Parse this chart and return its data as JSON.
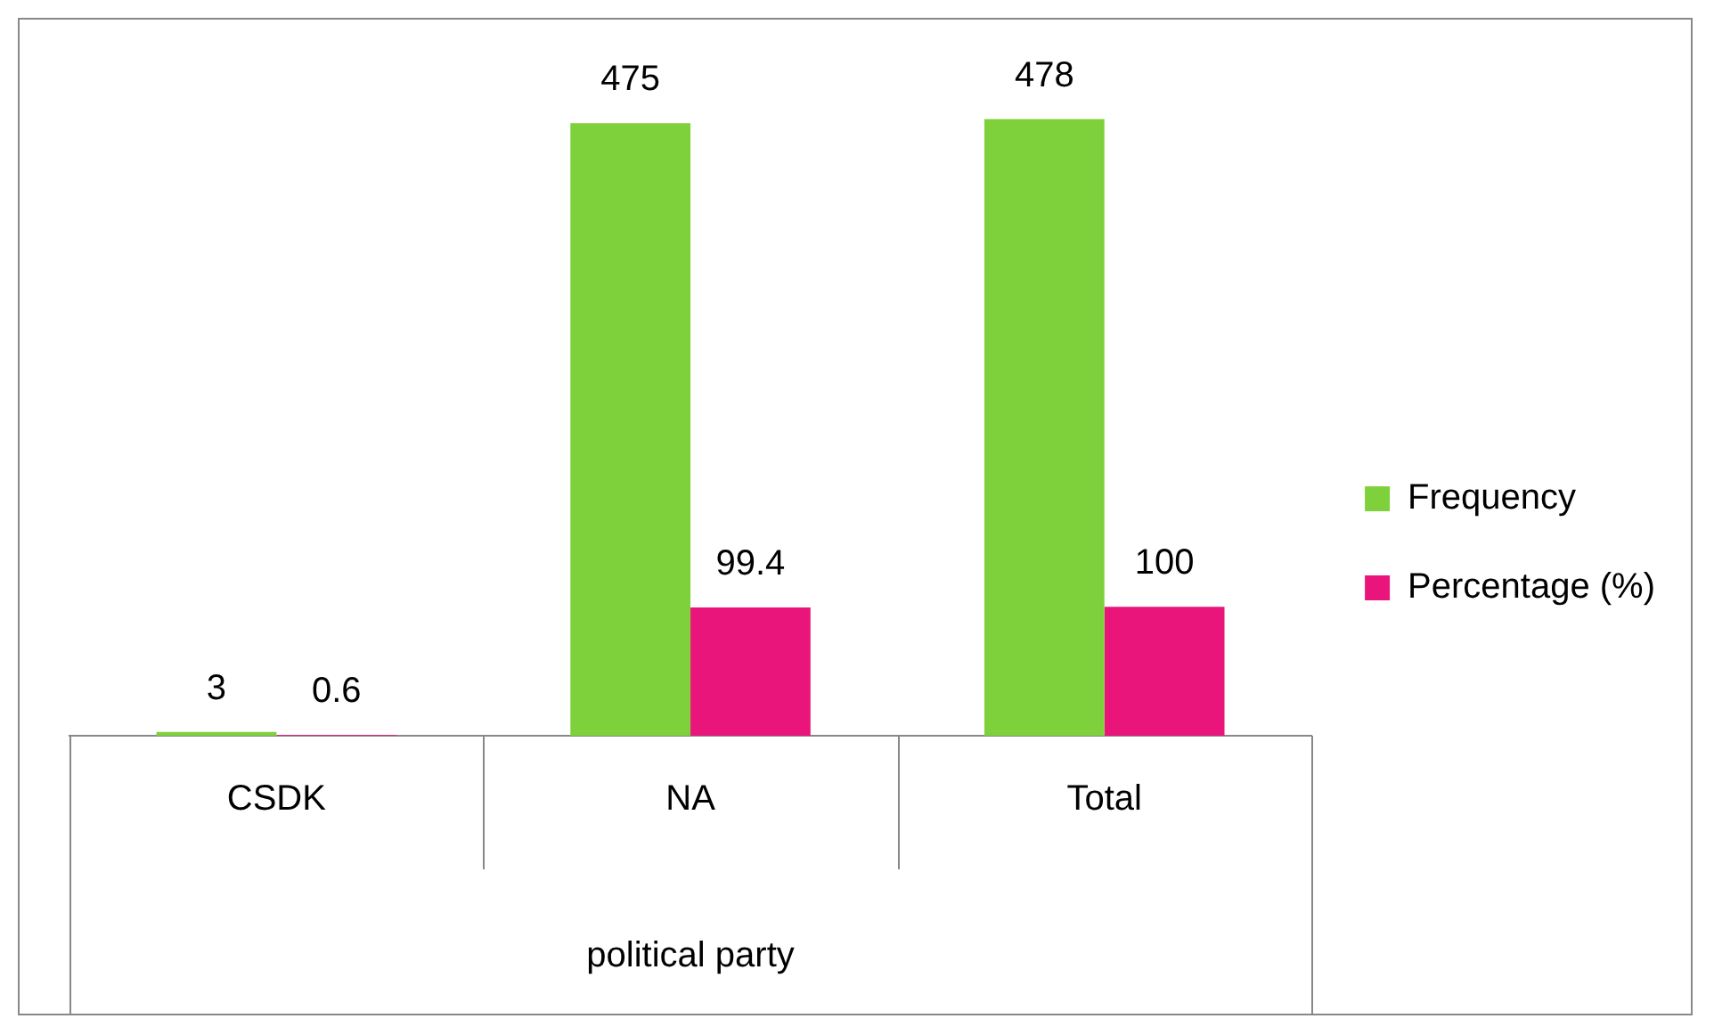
{
  "chart_data": {
    "type": "bar",
    "xlabel": "political party",
    "categories": [
      "CSDK",
      "NA",
      "Total"
    ],
    "series": [
      {
        "name": "Frequency",
        "color": "#7fd13b",
        "values": [
          3,
          475,
          478
        ]
      },
      {
        "name": "Percentage (%)",
        "color": "#ea157a",
        "values": [
          0.6,
          99.4,
          100
        ]
      }
    ],
    "data_labels": true,
    "legend": "right",
    "grid": false
  }
}
